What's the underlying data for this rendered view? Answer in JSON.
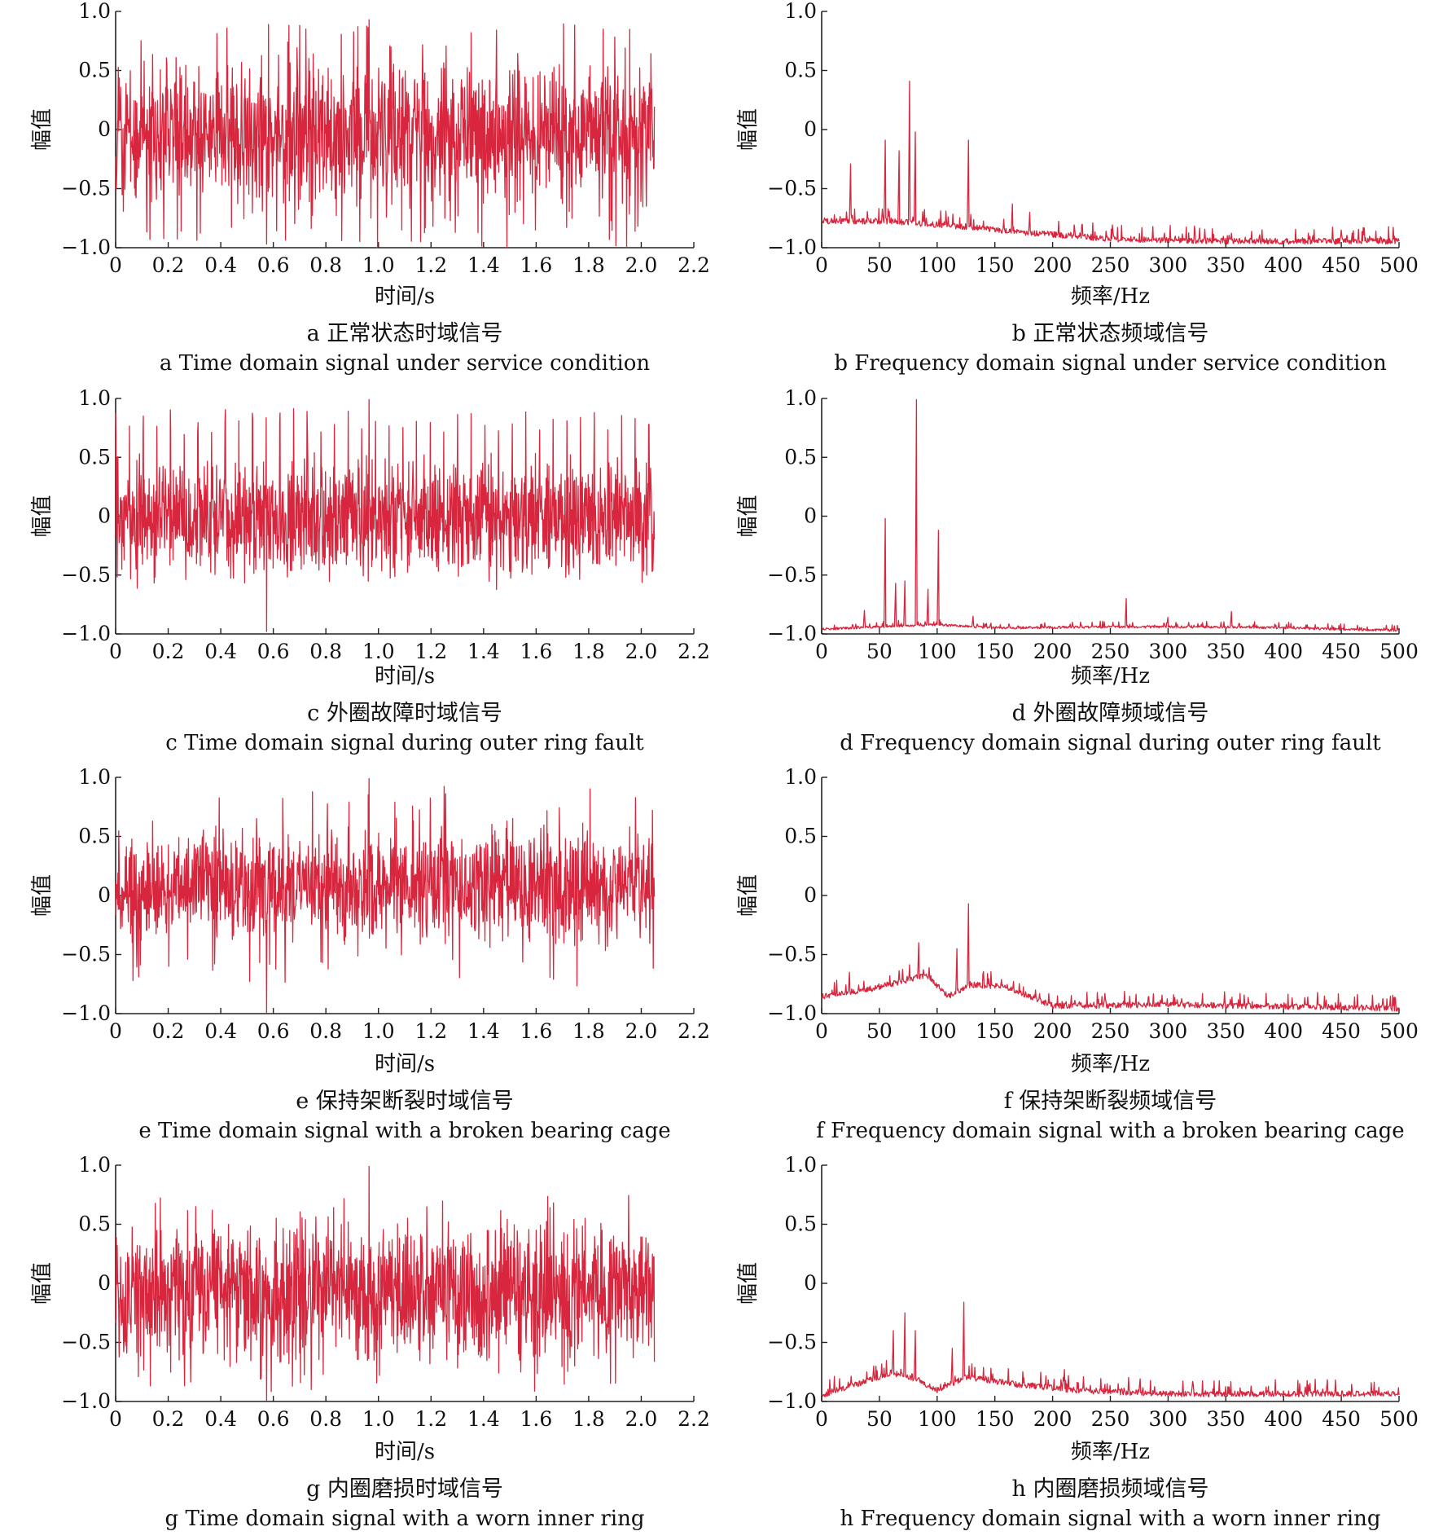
{
  "figure": {
    "line_color": "#d7263d"
  },
  "chart_data": [
    {
      "id": "a",
      "type": "line",
      "caption_cn": "a  正常状态时域信号",
      "caption_en": "a  Time domain signal under service condition",
      "xlabel": "时间/s",
      "ylabel": "幅值",
      "x_ticks": [
        "0",
        "0.2",
        "0.4",
        "0.6",
        "0.8",
        "1.0",
        "1.2",
        "1.4",
        "1.6",
        "1.8",
        "2.0",
        "2.2"
      ],
      "y_ticks": [
        "−1.0",
        "−0.5",
        "0",
        "0.5",
        "1.0"
      ],
      "xlim": [
        0,
        2.2
      ],
      "ylim": [
        -1.0,
        1.0
      ],
      "signal": {
        "kind": "time",
        "seed": 11,
        "n": 1400,
        "x_end": 2.05,
        "noise": 0.22,
        "bias": -0.05,
        "impulse_every": 0,
        "impulse_amp": 0,
        "burst_amp": 0.95,
        "burst_prob": 0.08
      },
      "series": [
        {
          "name": "",
          "peak_max": 0.93,
          "peak_min": -0.97
        }
      ]
    },
    {
      "id": "b",
      "type": "line",
      "caption_cn": "b  正常状态频域信号",
      "caption_en": "b  Frequency domain signal under service condition",
      "xlabel": "频率/Hz",
      "ylabel": "幅值",
      "x_ticks": [
        "0",
        "50",
        "100",
        "150",
        "200",
        "250",
        "300",
        "350",
        "400",
        "450",
        "500"
      ],
      "y_ticks": [
        "−1.0",
        "−0.5",
        "0",
        "0.5",
        "1.0"
      ],
      "xlim": [
        0,
        500
      ],
      "ylim": [
        -1.0,
        1.0
      ],
      "signal": {
        "kind": "freq",
        "seed": 21,
        "n": 1000,
        "envelope": [
          [
            0,
            -0.8
          ],
          [
            25,
            -0.8
          ],
          [
            60,
            -0.8
          ],
          [
            85,
            -0.82
          ],
          [
            130,
            -0.85
          ],
          [
            180,
            -0.9
          ],
          [
            250,
            -0.95
          ],
          [
            350,
            -0.97
          ],
          [
            500,
            -0.97
          ]
        ],
        "noise": 0.05
      },
      "peaks": [
        {
          "x": 25,
          "y": -0.29
        },
        {
          "x": 55,
          "y": -0.09
        },
        {
          "x": 67,
          "y": -0.18
        },
        {
          "x": 76,
          "y": 0.41
        },
        {
          "x": 81,
          "y": -0.02
        },
        {
          "x": 127,
          "y": -0.09
        },
        {
          "x": 165,
          "y": -0.63
        },
        {
          "x": 180,
          "y": -0.7
        },
        {
          "x": 450,
          "y": -0.85
        }
      ]
    },
    {
      "id": "c",
      "type": "line",
      "caption_cn": "c  外圈故障时域信号",
      "caption_en": "c  Time domain signal during outer ring fault",
      "xlabel": "时间/s",
      "ylabel": "幅值",
      "x_ticks": [
        "0",
        "0.2",
        "0.4",
        "0.6",
        "0.8",
        "1.0",
        "1.2",
        "1.4",
        "1.6",
        "1.8",
        "2.0",
        "2.2"
      ],
      "y_ticks": [
        "−1.0",
        "−0.5",
        "0",
        "0.5",
        "1.0"
      ],
      "xlim": [
        0,
        2.2
      ],
      "ylim": [
        -1.0,
        1.0
      ],
      "signal": {
        "kind": "time",
        "seed": 31,
        "n": 1400,
        "x_end": 2.05,
        "noise": 0.2,
        "bias": -0.03,
        "impulse_every": 0.052,
        "impulse_amp": 0.92,
        "burst_amp": 0.5,
        "burst_prob": 0.03
      },
      "series": [
        {
          "name": "",
          "peak_max": 0.99,
          "peak_min": -0.98
        }
      ]
    },
    {
      "id": "d",
      "type": "line",
      "caption_cn": "d  外圈故障频域信号",
      "caption_en": "d  Frequency domain signal during outer ring fault",
      "xlabel": "频率/Hz",
      "ylabel": "幅值",
      "x_ticks": [
        "0",
        "50",
        "100",
        "150",
        "200",
        "250",
        "300",
        "350",
        "400",
        "450",
        "500"
      ],
      "y_ticks": [
        "−1.0",
        "−0.5",
        "0",
        "0.5",
        "1.0"
      ],
      "xlim": [
        0,
        500
      ],
      "ylim": [
        -1.0,
        1.0
      ],
      "signal": {
        "kind": "freq",
        "seed": 41,
        "n": 1000,
        "envelope": [
          [
            0,
            -0.97
          ],
          [
            50,
            -0.95
          ],
          [
            100,
            -0.93
          ],
          [
            150,
            -0.96
          ],
          [
            250,
            -0.95
          ],
          [
            350,
            -0.95
          ],
          [
            500,
            -0.98
          ]
        ],
        "noise": 0.02
      },
      "peaks": [
        {
          "x": 55,
          "y": -0.02
        },
        {
          "x": 64,
          "y": -0.57
        },
        {
          "x": 72,
          "y": -0.55
        },
        {
          "x": 82,
          "y": 0.99
        },
        {
          "x": 92,
          "y": -0.62
        },
        {
          "x": 101,
          "y": -0.12
        },
        {
          "x": 37,
          "y": -0.8
        },
        {
          "x": 131,
          "y": -0.85
        },
        {
          "x": 264,
          "y": -0.7
        },
        {
          "x": 355,
          "y": -0.81
        },
        {
          "x": 300,
          "y": -0.86
        }
      ]
    },
    {
      "id": "e",
      "type": "line",
      "caption_cn": "e  保持架断裂时域信号",
      "caption_en": "e  Time domain signal with a broken bearing cage",
      "xlabel": "时间/s",
      "ylabel": "幅值",
      "x_ticks": [
        "0",
        "0.2",
        "0.4",
        "0.6",
        "0.8",
        "1.0",
        "1.2",
        "1.4",
        "1.6",
        "1.8",
        "2.0",
        "2.2"
      ],
      "y_ticks": [
        "−1.0",
        "−0.5",
        "0",
        "0.5",
        "1.0"
      ],
      "xlim": [
        0,
        2.2
      ],
      "ylim": [
        -1.0,
        1.0
      ],
      "signal": {
        "kind": "time",
        "seed": 51,
        "n": 1400,
        "x_end": 2.05,
        "noise": 0.18,
        "bias": 0.08,
        "impulse_every": 0,
        "impulse_amp": 0,
        "burst_amp": 0.85,
        "burst_prob": 0.05
      },
      "series": [
        {
          "name": "",
          "peak_max": 0.99,
          "peak_min": -0.99
        }
      ]
    },
    {
      "id": "f",
      "type": "line",
      "caption_cn": "f  保持架断裂频域信号",
      "caption_en": "f  Frequency domain signal with a broken bearing cage",
      "xlabel": "频率/Hz",
      "ylabel": "幅值",
      "x_ticks": [
        "0",
        "50",
        "100",
        "150",
        "200",
        "250",
        "300",
        "350",
        "400",
        "450",
        "500"
      ],
      "y_ticks": [
        "−1.0",
        "−0.5",
        "0",
        "0.5",
        "1.0"
      ],
      "xlim": [
        0,
        500
      ],
      "ylim": [
        -1.0,
        1.0
      ],
      "signal": {
        "kind": "freq",
        "seed": 61,
        "n": 1000,
        "envelope": [
          [
            0,
            -0.88
          ],
          [
            40,
            -0.82
          ],
          [
            70,
            -0.75
          ],
          [
            90,
            -0.7
          ],
          [
            110,
            -0.88
          ],
          [
            130,
            -0.78
          ],
          [
            160,
            -0.8
          ],
          [
            200,
            -0.96
          ],
          [
            300,
            -0.95
          ],
          [
            500,
            -0.98
          ]
        ],
        "noise": 0.05
      },
      "peaks": [
        {
          "x": 84,
          "y": -0.4
        },
        {
          "x": 117,
          "y": -0.45
        },
        {
          "x": 127,
          "y": -0.07
        },
        {
          "x": 9,
          "y": -0.8
        },
        {
          "x": 24,
          "y": -0.65
        },
        {
          "x": 245,
          "y": -0.83
        }
      ]
    },
    {
      "id": "g",
      "type": "line",
      "caption_cn": "g  内圈磨损时域信号",
      "caption_en": "g  Time domain signal with a worn inner ring",
      "xlabel": "时间/s",
      "ylabel": "幅值",
      "x_ticks": [
        "0",
        "0.2",
        "0.4",
        "0.6",
        "0.8",
        "1.0",
        "1.2",
        "1.4",
        "1.6",
        "1.8",
        "2.0",
        "2.2"
      ],
      "y_ticks": [
        "−1.0",
        "−0.5",
        "0",
        "0.5",
        "1.0"
      ],
      "xlim": [
        0,
        2.2
      ],
      "ylim": [
        -1.0,
        1.0
      ],
      "signal": {
        "kind": "time",
        "seed": 71,
        "n": 1400,
        "x_end": 2.05,
        "noise": 0.22,
        "bias": -0.08,
        "impulse_every": 0,
        "impulse_amp": 0,
        "burst_amp": 0.85,
        "burst_prob": 0.06
      },
      "series": [
        {
          "name": "",
          "peak_max": 0.99,
          "peak_min": -0.99
        }
      ]
    },
    {
      "id": "h",
      "type": "line",
      "caption_cn": "h  内圈磨损频域信号",
      "caption_en": "h  Frequency domain signal with a worn inner ring",
      "xlabel": "频率/Hz",
      "ylabel": "幅值",
      "x_ticks": [
        "0",
        "50",
        "100",
        "150",
        "200",
        "250",
        "300",
        "350",
        "400",
        "450",
        "500"
      ],
      "y_ticks": [
        "−1.0",
        "−0.5",
        "0",
        "0.5",
        "1.0"
      ],
      "xlim": [
        0,
        500
      ],
      "ylim": [
        -1.0,
        1.0
      ],
      "signal": {
        "kind": "freq",
        "seed": 81,
        "n": 1000,
        "envelope": [
          [
            0,
            -0.97
          ],
          [
            30,
            -0.88
          ],
          [
            60,
            -0.78
          ],
          [
            85,
            -0.85
          ],
          [
            100,
            -0.93
          ],
          [
            125,
            -0.82
          ],
          [
            170,
            -0.88
          ],
          [
            220,
            -0.93
          ],
          [
            300,
            -0.96
          ],
          [
            500,
            -0.96
          ]
        ],
        "noise": 0.05
      },
      "peaks": [
        {
          "x": 45,
          "y": -0.7
        },
        {
          "x": 62,
          "y": -0.4
        },
        {
          "x": 72,
          "y": -0.25
        },
        {
          "x": 81,
          "y": -0.4
        },
        {
          "x": 123,
          "y": -0.16
        },
        {
          "x": 113,
          "y": -0.55
        },
        {
          "x": 175,
          "y": -0.8
        },
        {
          "x": 210,
          "y": -0.73
        },
        {
          "x": 455,
          "y": -0.92
        }
      ]
    }
  ]
}
